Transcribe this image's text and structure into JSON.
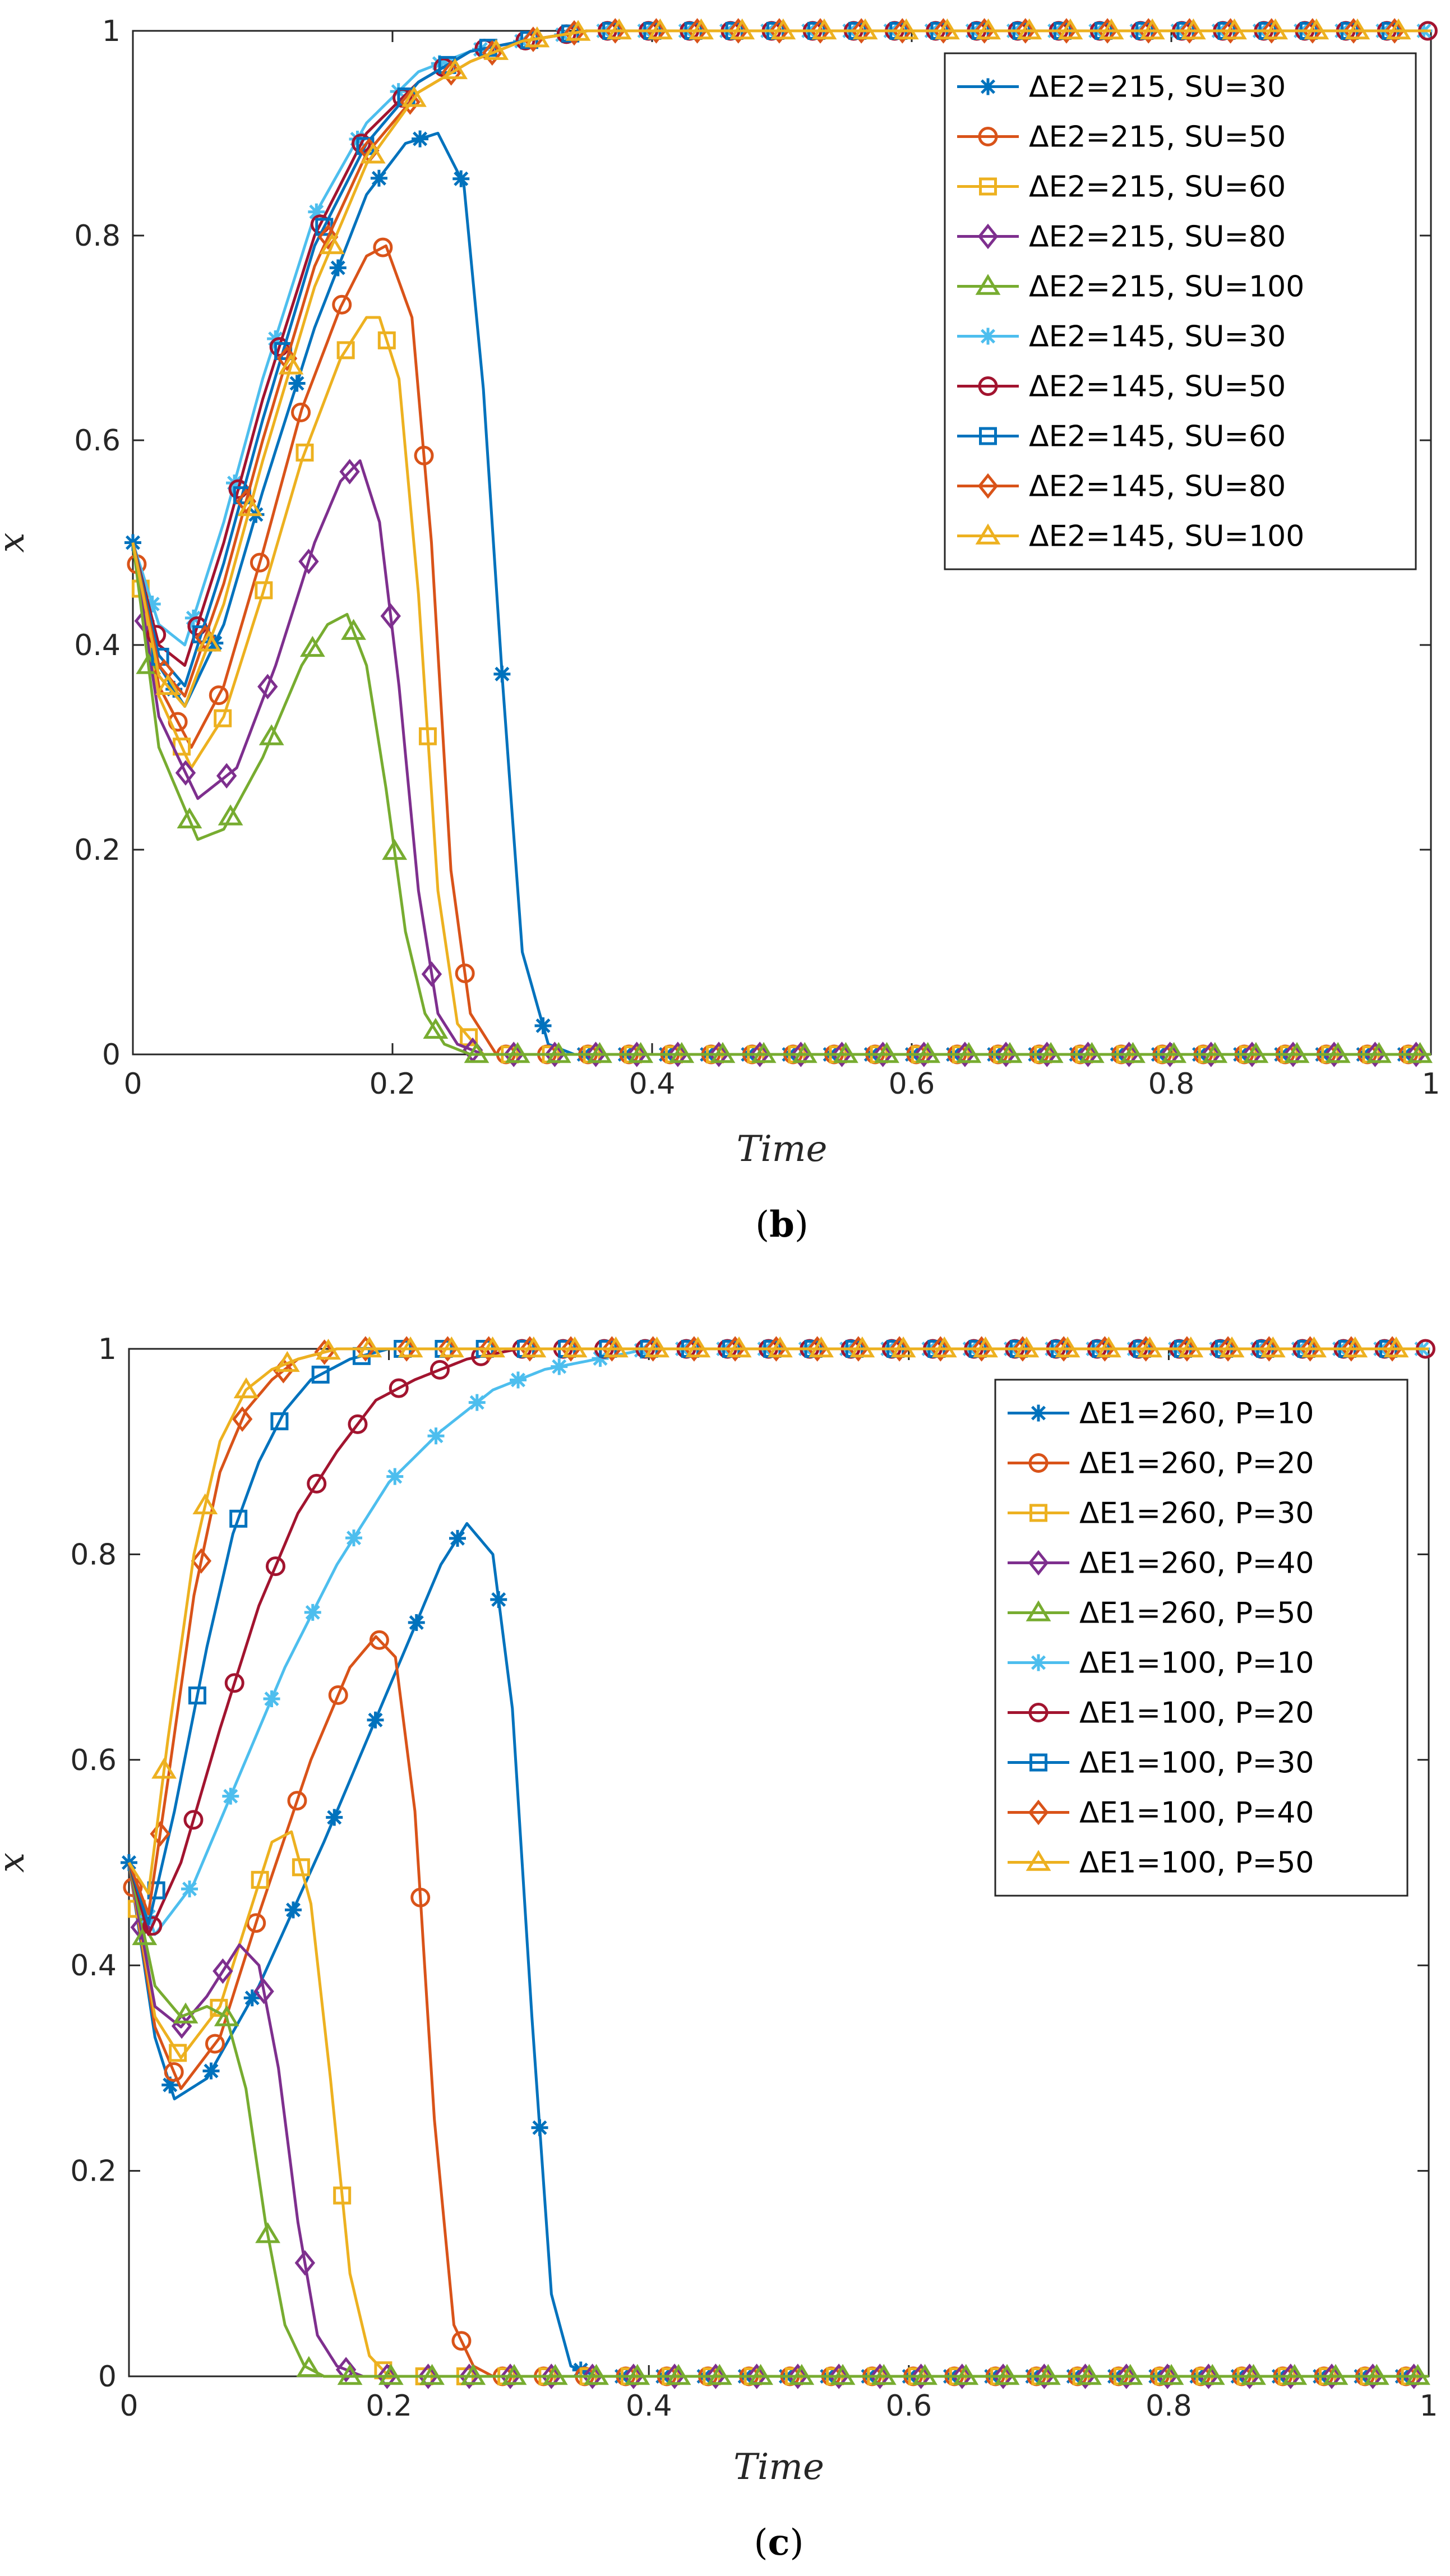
{
  "chart_data": [
    {
      "type": "line",
      "panel_label": "b",
      "xlabel": "Time",
      "ylabel": "x",
      "xlim": [
        0,
        1
      ],
      "ylim": [
        0,
        1
      ],
      "x_ticks": [
        "0",
        "0.2",
        "0.4",
        "0.6",
        "0.8",
        "1"
      ],
      "y_ticks": [
        "0",
        "0.2",
        "0.4",
        "0.6",
        "0.8",
        "1"
      ],
      "grid": false,
      "legend_position": "top-right",
      "series": [
        {
          "name": "ΔE2=215, SU=30",
          "color": "#0072BD",
          "marker": "star",
          "phase": 0.0,
          "x": [
            0,
            0.02,
            0.04,
            0.07,
            0.1,
            0.14,
            0.18,
            0.21,
            0.235,
            0.255,
            0.27,
            0.285,
            0.3,
            0.32,
            0.34,
            0.4,
            1.0
          ],
          "y": [
            0.5,
            0.38,
            0.34,
            0.42,
            0.55,
            0.71,
            0.84,
            0.89,
            0.9,
            0.85,
            0.65,
            0.36,
            0.1,
            0.01,
            0.0,
            0.0,
            0.0
          ]
        },
        {
          "name": "ΔE2=215, SU=50",
          "color": "#D95319",
          "marker": "circle",
          "phase": 0.003,
          "x": [
            0,
            0.02,
            0.045,
            0.07,
            0.1,
            0.13,
            0.16,
            0.18,
            0.195,
            0.215,
            0.23,
            0.245,
            0.26,
            0.28,
            0.3,
            1.0
          ],
          "y": [
            0.5,
            0.36,
            0.3,
            0.36,
            0.49,
            0.63,
            0.73,
            0.78,
            0.79,
            0.72,
            0.5,
            0.18,
            0.04,
            0.0,
            0.0,
            0.0
          ]
        },
        {
          "name": "ΔE2=215, SU=60",
          "color": "#EDB120",
          "marker": "square",
          "phase": 0.006,
          "x": [
            0,
            0.02,
            0.045,
            0.07,
            0.1,
            0.13,
            0.16,
            0.18,
            0.19,
            0.205,
            0.22,
            0.235,
            0.25,
            0.27,
            0.29,
            1.0
          ],
          "y": [
            0.5,
            0.35,
            0.28,
            0.33,
            0.45,
            0.58,
            0.68,
            0.72,
            0.72,
            0.66,
            0.45,
            0.16,
            0.03,
            0.0,
            0.0,
            0.0
          ]
        },
        {
          "name": "ΔE2=215, SU=80",
          "color": "#7E2F8E",
          "marker": "diamond",
          "phase": 0.009,
          "x": [
            0,
            0.02,
            0.05,
            0.08,
            0.11,
            0.14,
            0.16,
            0.175,
            0.19,
            0.205,
            0.22,
            0.235,
            0.25,
            0.27,
            1.0
          ],
          "y": [
            0.5,
            0.33,
            0.25,
            0.28,
            0.38,
            0.5,
            0.56,
            0.58,
            0.52,
            0.36,
            0.16,
            0.04,
            0.01,
            0.0,
            0.0
          ]
        },
        {
          "name": "ΔE2=215, SU=100",
          "color": "#77AC30",
          "marker": "triangle",
          "phase": 0.012,
          "x": [
            0,
            0.02,
            0.05,
            0.07,
            0.1,
            0.13,
            0.15,
            0.165,
            0.18,
            0.195,
            0.21,
            0.225,
            0.24,
            0.26,
            1.0
          ],
          "y": [
            0.5,
            0.3,
            0.21,
            0.22,
            0.29,
            0.38,
            0.42,
            0.43,
            0.38,
            0.26,
            0.12,
            0.04,
            0.01,
            0.0,
            0.0
          ]
        },
        {
          "name": "ΔE2=145, SU=30",
          "color": "#4DBEEE",
          "marker": "star",
          "phase": 0.015,
          "x": [
            0,
            0.02,
            0.04,
            0.07,
            0.1,
            0.14,
            0.18,
            0.22,
            0.26,
            0.3,
            0.35,
            0.4,
            1.0
          ],
          "y": [
            0.5,
            0.42,
            0.4,
            0.52,
            0.66,
            0.82,
            0.91,
            0.96,
            0.98,
            0.99,
            1.0,
            1.0,
            1.0
          ]
        },
        {
          "name": "ΔE2=145, SU=50",
          "color": "#A2142F",
          "marker": "circle",
          "phase": 0.018,
          "x": [
            0,
            0.02,
            0.04,
            0.07,
            0.1,
            0.14,
            0.18,
            0.22,
            0.26,
            0.3,
            0.35,
            0.4,
            1.0
          ],
          "y": [
            0.5,
            0.4,
            0.38,
            0.5,
            0.64,
            0.8,
            0.9,
            0.95,
            0.98,
            0.99,
            1.0,
            1.0,
            1.0
          ]
        },
        {
          "name": "ΔE2=145, SU=60",
          "color": "#0072BD",
          "marker": "square",
          "phase": 0.021,
          "x": [
            0,
            0.02,
            0.04,
            0.07,
            0.1,
            0.14,
            0.18,
            0.22,
            0.26,
            0.3,
            0.35,
            0.4,
            1.0
          ],
          "y": [
            0.5,
            0.39,
            0.36,
            0.48,
            0.62,
            0.79,
            0.89,
            0.95,
            0.98,
            0.99,
            1.0,
            1.0,
            1.0
          ]
        },
        {
          "name": "ΔE2=145, SU=80",
          "color": "#D95319",
          "marker": "diamond",
          "phase": 0.024,
          "x": [
            0,
            0.02,
            0.04,
            0.07,
            0.1,
            0.14,
            0.18,
            0.22,
            0.26,
            0.3,
            0.35,
            0.4,
            1.0
          ],
          "y": [
            0.5,
            0.38,
            0.35,
            0.46,
            0.6,
            0.77,
            0.88,
            0.94,
            0.97,
            0.99,
            1.0,
            1.0,
            1.0
          ]
        },
        {
          "name": "ΔE2=145, SU=100",
          "color": "#EDB120",
          "marker": "triangle",
          "phase": 0.027,
          "x": [
            0,
            0.02,
            0.04,
            0.07,
            0.1,
            0.14,
            0.18,
            0.22,
            0.26,
            0.3,
            0.35,
            0.4,
            1.0
          ],
          "y": [
            0.5,
            0.37,
            0.34,
            0.44,
            0.58,
            0.75,
            0.87,
            0.94,
            0.97,
            0.99,
            1.0,
            1.0,
            1.0
          ]
        }
      ]
    },
    {
      "type": "line",
      "panel_label": "c",
      "xlabel": "Time",
      "ylabel": "x",
      "xlim": [
        0,
        1
      ],
      "ylim": [
        0,
        1
      ],
      "x_ticks": [
        "0",
        "0.2",
        "0.4",
        "0.6",
        "0.8",
        "1"
      ],
      "y_ticks": [
        "0",
        "0.2",
        "0.4",
        "0.6",
        "0.8",
        "1"
      ],
      "grid": false,
      "legend_position": "top-right",
      "series": [
        {
          "name": "ΔE1=260, P=10",
          "color": "#0072BD",
          "marker": "star",
          "phase": 0.0,
          "x": [
            0,
            0.02,
            0.035,
            0.06,
            0.1,
            0.15,
            0.2,
            0.24,
            0.26,
            0.28,
            0.295,
            0.31,
            0.325,
            0.34,
            0.36,
            1.0
          ],
          "y": [
            0.5,
            0.33,
            0.27,
            0.29,
            0.38,
            0.52,
            0.67,
            0.79,
            0.83,
            0.8,
            0.65,
            0.35,
            0.08,
            0.01,
            0.0,
            0.0
          ]
        },
        {
          "name": "ΔE1=260, P=20",
          "color": "#D95319",
          "marker": "circle",
          "phase": 0.003,
          "x": [
            0,
            0.02,
            0.04,
            0.07,
            0.1,
            0.14,
            0.17,
            0.19,
            0.205,
            0.22,
            0.235,
            0.25,
            0.265,
            0.28,
            1.0
          ],
          "y": [
            0.5,
            0.34,
            0.28,
            0.33,
            0.45,
            0.6,
            0.69,
            0.72,
            0.7,
            0.55,
            0.25,
            0.05,
            0.01,
            0.0,
            0.0
          ]
        },
        {
          "name": "ΔE1=260, P=30",
          "color": "#EDB120",
          "marker": "square",
          "phase": 0.006,
          "x": [
            0,
            0.02,
            0.04,
            0.07,
            0.09,
            0.11,
            0.125,
            0.14,
            0.155,
            0.17,
            0.185,
            0.2,
            0.22,
            1.0
          ],
          "y": [
            0.5,
            0.35,
            0.31,
            0.36,
            0.44,
            0.52,
            0.53,
            0.46,
            0.29,
            0.1,
            0.02,
            0.0,
            0.0,
            0.0
          ]
        },
        {
          "name": "ΔE1=260, P=40",
          "color": "#7E2F8E",
          "marker": "diamond",
          "phase": 0.009,
          "x": [
            0,
            0.02,
            0.04,
            0.06,
            0.085,
            0.1,
            0.115,
            0.13,
            0.145,
            0.16,
            0.18,
            0.2,
            1.0
          ],
          "y": [
            0.5,
            0.36,
            0.34,
            0.37,
            0.42,
            0.4,
            0.3,
            0.15,
            0.04,
            0.01,
            0.0,
            0.0,
            0.0
          ]
        },
        {
          "name": "ΔE1=260, P=50",
          "color": "#77AC30",
          "marker": "triangle",
          "phase": 0.012,
          "x": [
            0,
            0.02,
            0.04,
            0.06,
            0.075,
            0.09,
            0.105,
            0.12,
            0.135,
            0.15,
            0.17,
            0.19,
            1.0
          ],
          "y": [
            0.5,
            0.38,
            0.35,
            0.36,
            0.35,
            0.28,
            0.15,
            0.05,
            0.01,
            0.0,
            0.0,
            0.0,
            0.0
          ]
        },
        {
          "name": "ΔE1=100, P=10",
          "color": "#4DBEEE",
          "marker": "star",
          "phase": 0.015,
          "x": [
            0,
            0.02,
            0.05,
            0.08,
            0.12,
            0.16,
            0.2,
            0.24,
            0.28,
            0.32,
            0.36,
            0.4,
            0.45,
            1.0
          ],
          "y": [
            0.5,
            0.43,
            0.48,
            0.57,
            0.69,
            0.79,
            0.87,
            0.92,
            0.96,
            0.98,
            0.99,
            1.0,
            1.0,
            1.0
          ]
        },
        {
          "name": "ΔE1=100, P=20",
          "color": "#A2142F",
          "marker": "circle",
          "phase": 0.018,
          "x": [
            0,
            0.015,
            0.04,
            0.07,
            0.1,
            0.13,
            0.16,
            0.19,
            0.22,
            0.26,
            0.3,
            0.35,
            1.0
          ],
          "y": [
            0.5,
            0.43,
            0.5,
            0.63,
            0.75,
            0.84,
            0.9,
            0.95,
            0.97,
            0.99,
            1.0,
            1.0,
            1.0
          ]
        },
        {
          "name": "ΔE1=100, P=30",
          "color": "#0072BD",
          "marker": "square",
          "phase": 0.021,
          "x": [
            0,
            0.015,
            0.035,
            0.06,
            0.08,
            0.1,
            0.12,
            0.14,
            0.17,
            0.2,
            0.24,
            0.3,
            1.0
          ],
          "y": [
            0.5,
            0.44,
            0.55,
            0.71,
            0.82,
            0.89,
            0.94,
            0.97,
            0.99,
            1.0,
            1.0,
            1.0,
            1.0
          ]
        },
        {
          "name": "ΔE1=100, P=40",
          "color": "#D95319",
          "marker": "diamond",
          "phase": 0.024,
          "x": [
            0,
            0.015,
            0.03,
            0.05,
            0.07,
            0.09,
            0.11,
            0.13,
            0.16,
            0.2,
            0.25,
            1.0
          ],
          "y": [
            0.5,
            0.45,
            0.58,
            0.76,
            0.88,
            0.94,
            0.97,
            0.99,
            1.0,
            1.0,
            1.0,
            1.0
          ]
        },
        {
          "name": "ΔE1=100, P=50",
          "color": "#EDB120",
          "marker": "triangle",
          "phase": 0.027,
          "x": [
            0,
            0.015,
            0.03,
            0.05,
            0.07,
            0.09,
            0.11,
            0.13,
            0.16,
            0.2,
            0.25,
            1.0
          ],
          "y": [
            0.5,
            0.47,
            0.62,
            0.8,
            0.91,
            0.96,
            0.98,
            0.99,
            1.0,
            1.0,
            1.0,
            1.0
          ]
        }
      ]
    }
  ]
}
